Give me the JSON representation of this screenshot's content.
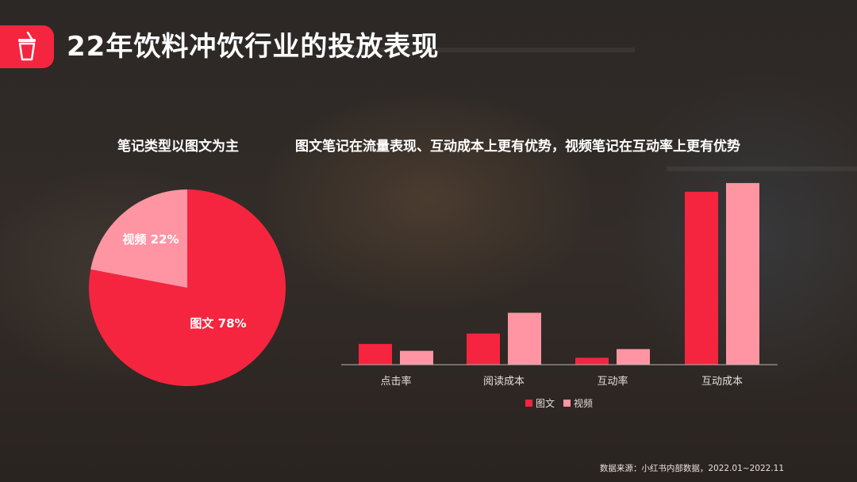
{
  "header": {
    "title": "22年饮料冲饮行业的投放表现",
    "icon": "drink-cup-icon"
  },
  "colors": {
    "accent": "#f5253f",
    "secondary": "#ff95a3",
    "text": "#ffffff"
  },
  "left_chart": {
    "subtitle": "笔记类型以图文为主"
  },
  "right_chart": {
    "subtitle": "图文笔记在流量表现、互动成本上更有优势，视频笔记在互动率上更有优势"
  },
  "chart_data": [
    {
      "type": "pie",
      "title": "笔记类型以图文为主",
      "slices": [
        {
          "label": "图文",
          "value": 78,
          "display": "图文 78%",
          "color": "#f5253f"
        },
        {
          "label": "视频",
          "value": 22,
          "display": "视频 22%",
          "color": "#ff95a3"
        }
      ]
    },
    {
      "type": "bar",
      "title": "图文笔记在流量表现、互动成本上更有优势，视频笔记在互动率上更有优势",
      "categories": [
        "点击率",
        "阅读成本",
        "互动率",
        "互动成本"
      ],
      "series": [
        {
          "name": "图文",
          "values": [
            12,
            18,
            4,
            100
          ],
          "color": "#f5253f"
        },
        {
          "name": "视频",
          "values": [
            8,
            30,
            9,
            105
          ],
          "color": "#ff95a3"
        }
      ],
      "ylim": [
        0,
        110
      ],
      "grid": false,
      "y_axis_visible": false,
      "legend_position": "bottom-center"
    }
  ],
  "footer": {
    "source": "数据来源：小红书内部数据，2022.01~2022.11"
  }
}
